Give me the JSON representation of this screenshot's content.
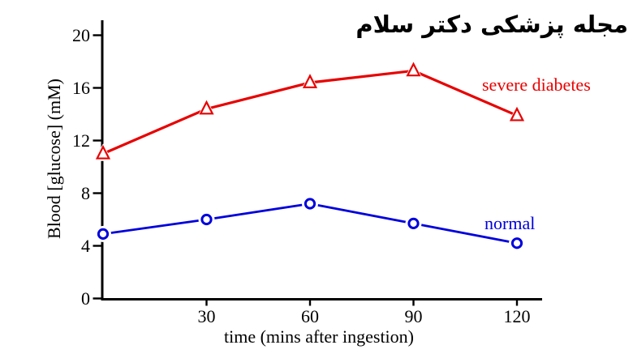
{
  "page": {
    "watermark_title": "مجله پزشکی دکتر سلام"
  },
  "chart_data": {
    "type": "line",
    "xlabel": "time (mins after ingestion)",
    "ylabel": "Blood [glucose] (mM)",
    "x": [
      0,
      30,
      60,
      90,
      120
    ],
    "x_ticks": [
      30,
      60,
      90,
      120
    ],
    "x_tick_labels": [
      "30",
      "60",
      "90",
      "120"
    ],
    "y_ticks": [
      0,
      4,
      8,
      12,
      16,
      20
    ],
    "y_tick_labels": [
      "0",
      "4",
      "8",
      "12",
      "16",
      "20"
    ],
    "xlim": [
      0,
      127
    ],
    "ylim": [
      0,
      21
    ],
    "grid": false,
    "legend_position": "inline text labels beside lines",
    "background": "#ffffff",
    "axis_color": "#000000",
    "series": [
      {
        "name": "severe diabetes",
        "color": "#e80000",
        "marker": "open-triangle",
        "values": [
          11,
          14.4,
          16.4,
          17.3,
          13.9
        ]
      },
      {
        "name": "normal",
        "color": "#0000dd",
        "marker": "open-circle",
        "values": [
          4.9,
          6.0,
          7.2,
          5.7,
          4.2
        ]
      }
    ]
  }
}
